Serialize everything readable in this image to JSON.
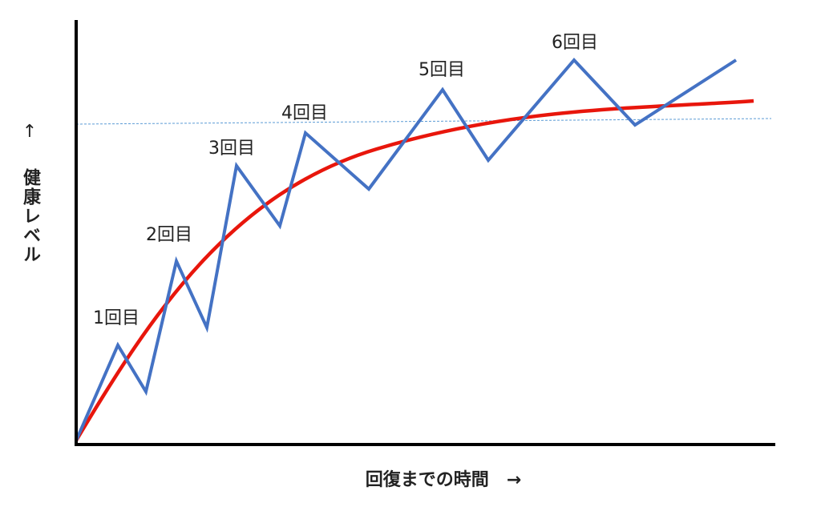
{
  "y_axis": {
    "arrow": "↑",
    "label": "健康レベル"
  },
  "x_axis": {
    "label": "回復までの時間　→"
  },
  "annotations": [
    "1回目",
    "2回目",
    "3回目",
    "4回目",
    "5回目",
    "6回目"
  ]
}
